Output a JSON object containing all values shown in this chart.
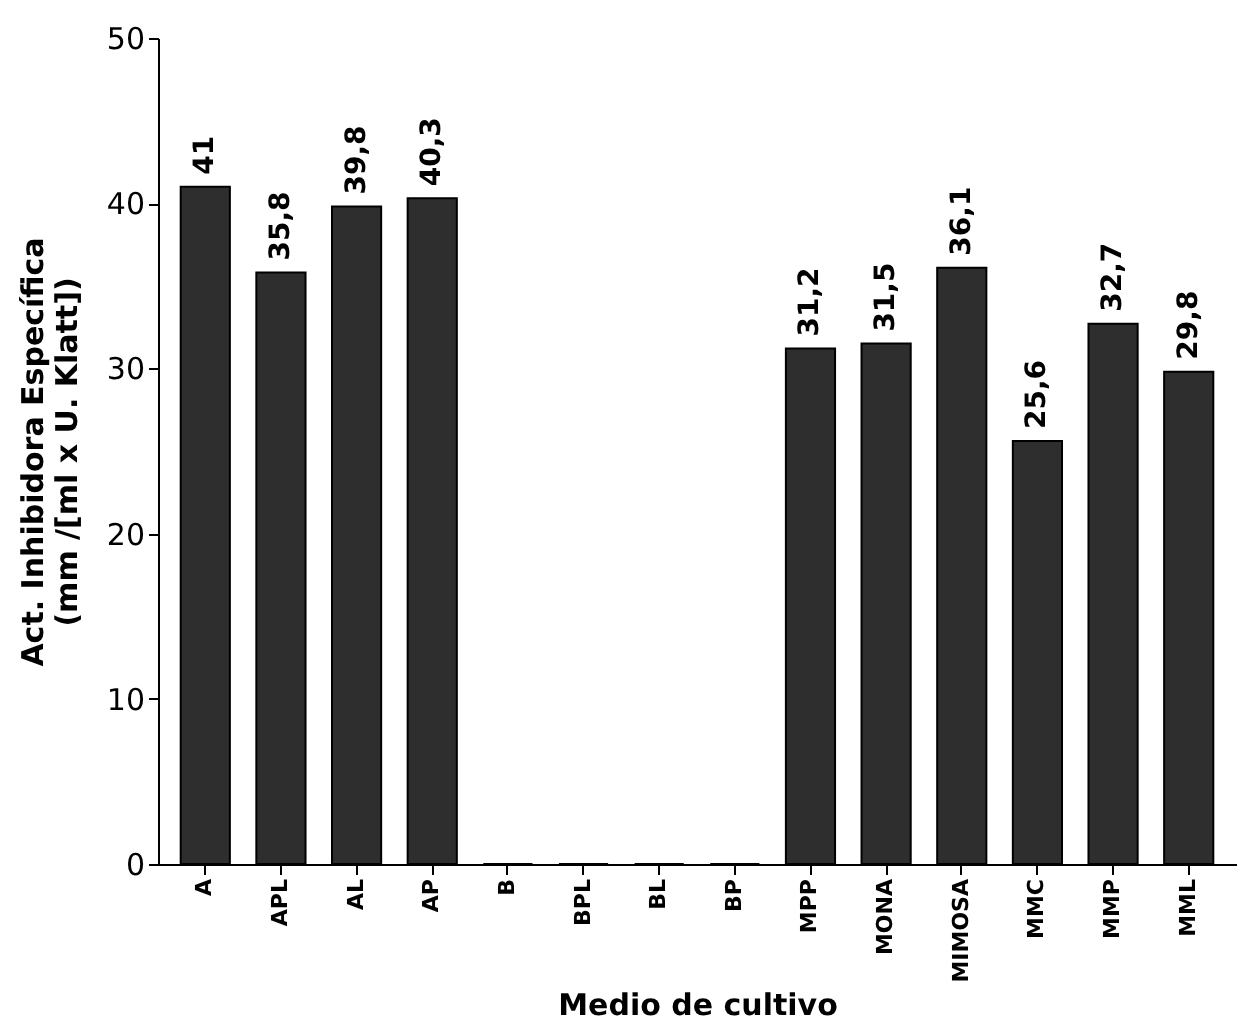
{
  "chart_data": {
    "type": "bar",
    "xlabel": "Medio de cultivo",
    "ylabel": "Act. Inhibidora Específica\n(mm /[ml x U. Klatt])",
    "categories": [
      "A",
      "APL",
      "AL",
      "AP",
      "B",
      "BPL",
      "BL",
      "BP",
      "MPP",
      "MONA",
      "MIMOSA",
      "MMC",
      "MMP",
      "MML"
    ],
    "values": [
      41,
      35.8,
      39.8,
      40.3,
      0,
      0,
      0,
      0,
      31.2,
      31.5,
      36.1,
      25.6,
      32.7,
      29.8
    ],
    "value_labels": [
      "41",
      "35,8",
      "39,8",
      "40,3",
      null,
      null,
      null,
      null,
      "31,2",
      "31,5",
      "36,1",
      "25,6",
      "32,7",
      "29,8"
    ],
    "color": "#2e2e2e",
    "ylim": [
      0,
      50
    ],
    "yticks": [
      0,
      10,
      20,
      30,
      40,
      50
    ],
    "grid": false
  }
}
